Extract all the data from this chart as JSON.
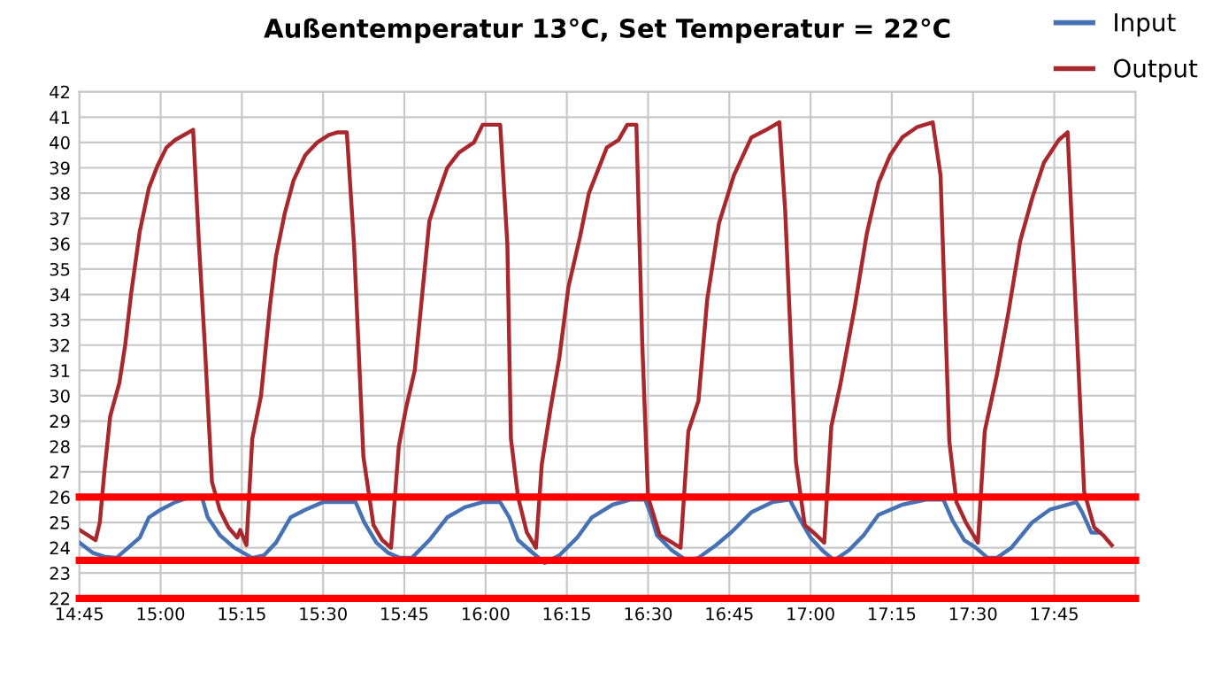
{
  "chart_data": {
    "type": "line",
    "title": "Außentemperatur 13°C, Set Temperatur = 22°C",
    "xlim": [
      14.75,
      18.0
    ],
    "xticks": [
      {
        "value": 14.75,
        "label": "14:45"
      },
      {
        "value": 15.0,
        "label": "15:00"
      },
      {
        "value": 15.25,
        "label": "15:15"
      },
      {
        "value": 15.5,
        "label": "15:30"
      },
      {
        "value": 15.75,
        "label": "15:45"
      },
      {
        "value": 16.0,
        "label": "16:00"
      },
      {
        "value": 16.25,
        "label": "16:15"
      },
      {
        "value": 16.5,
        "label": "16:30"
      },
      {
        "value": 16.75,
        "label": "16:45"
      },
      {
        "value": 17.0,
        "label": "17:00"
      },
      {
        "value": 17.25,
        "label": "17:15"
      },
      {
        "value": 17.5,
        "label": "17:30"
      },
      {
        "value": 17.75,
        "label": "17:45"
      }
    ],
    "ylim": [
      22,
      42
    ],
    "yticks": [
      22,
      23,
      24,
      25,
      26,
      27,
      28,
      29,
      30,
      31,
      32,
      33,
      34,
      35,
      36,
      37,
      38,
      39,
      40,
      41,
      42
    ],
    "grid": true,
    "legend": "top right",
    "line_style": "solid",
    "marker": "none",
    "series": [
      {
        "name": "Input",
        "color": "#4672b4",
        "x": [
          14.751,
          14.791,
          14.827,
          14.864,
          14.9,
          14.936,
          14.964,
          15.0,
          15.045,
          15.091,
          15.127,
          15.145,
          15.182,
          15.227,
          15.282,
          15.318,
          15.355,
          15.4,
          15.445,
          15.5,
          15.555,
          15.6,
          15.627,
          15.664,
          15.7,
          15.736,
          15.773,
          15.827,
          15.882,
          15.936,
          15.991,
          16.045,
          16.073,
          16.1,
          16.136,
          16.182,
          16.227,
          16.282,
          16.327,
          16.391,
          16.445,
          16.491,
          16.509,
          16.527,
          16.573,
          16.618,
          16.655,
          16.709,
          16.755,
          16.818,
          16.882,
          16.936,
          16.964,
          17.0,
          17.036,
          17.073,
          17.118,
          17.164,
          17.209,
          17.282,
          17.355,
          17.409,
          17.436,
          17.473,
          17.509,
          17.545,
          17.573,
          17.618,
          17.682,
          17.736,
          17.818,
          17.836,
          17.864,
          17.891
        ],
        "values": [
          24.2,
          23.8,
          23.65,
          23.6,
          24.0,
          24.4,
          25.2,
          25.5,
          25.8,
          26.0,
          26.0,
          25.2,
          24.5,
          24.0,
          23.6,
          23.7,
          24.2,
          25.2,
          25.5,
          25.8,
          25.8,
          25.8,
          25.0,
          24.2,
          23.8,
          23.6,
          23.6,
          24.3,
          25.2,
          25.6,
          25.8,
          25.8,
          25.2,
          24.3,
          23.9,
          23.4,
          23.7,
          24.4,
          25.2,
          25.7,
          25.9,
          25.9,
          25.3,
          24.5,
          23.9,
          23.5,
          23.6,
          24.1,
          24.6,
          25.4,
          25.8,
          25.9,
          25.2,
          24.4,
          23.9,
          23.5,
          23.9,
          24.5,
          25.3,
          25.7,
          25.9,
          25.9,
          25.1,
          24.3,
          24.0,
          23.6,
          23.6,
          24.0,
          25.0,
          25.5,
          25.8,
          25.4,
          24.6,
          24.6
        ]
      },
      {
        "name": "Output",
        "color": "#a8282e",
        "x": [
          14.751,
          14.8,
          14.813,
          14.827,
          14.845,
          14.873,
          14.891,
          14.909,
          14.936,
          14.964,
          14.991,
          15.018,
          15.045,
          15.073,
          15.1,
          15.118,
          15.136,
          15.158,
          15.182,
          15.209,
          15.236,
          15.245,
          15.264,
          15.282,
          15.309,
          15.336,
          15.355,
          15.382,
          15.409,
          15.445,
          15.482,
          15.518,
          15.545,
          15.573,
          15.595,
          15.624,
          15.655,
          15.682,
          15.709,
          15.733,
          15.755,
          15.782,
          15.805,
          15.827,
          15.855,
          15.882,
          15.918,
          15.964,
          15.991,
          16.045,
          16.067,
          16.078,
          16.1,
          16.127,
          16.155,
          16.173,
          16.2,
          16.227,
          16.255,
          16.291,
          16.318,
          16.373,
          16.409,
          16.436,
          16.464,
          16.482,
          16.5,
          16.536,
          16.6,
          16.624,
          16.655,
          16.682,
          16.718,
          16.764,
          16.818,
          16.864,
          16.904,
          16.922,
          16.955,
          16.982,
          17.009,
          17.042,
          17.064,
          17.091,
          17.136,
          17.173,
          17.209,
          17.245,
          17.282,
          17.327,
          17.376,
          17.4,
          17.427,
          17.449,
          17.478,
          17.515,
          17.536,
          17.573,
          17.609,
          17.645,
          17.682,
          17.718,
          17.764,
          17.791,
          17.809,
          17.842,
          17.873,
          17.9,
          17.927
        ],
        "values": [
          24.7,
          24.3,
          25.0,
          27.0,
          29.2,
          30.5,
          32.0,
          34.0,
          36.5,
          38.2,
          39.1,
          39.8,
          40.1,
          40.3,
          40.5,
          36.0,
          32.0,
          26.6,
          25.5,
          24.8,
          24.4,
          24.7,
          24.1,
          28.3,
          30.0,
          33.5,
          35.5,
          37.2,
          38.5,
          39.5,
          40.0,
          40.3,
          40.4,
          40.4,
          36.0,
          27.6,
          24.9,
          24.3,
          24.0,
          28.0,
          29.5,
          31.0,
          34.0,
          36.9,
          38.0,
          39.0,
          39.6,
          40.0,
          40.7,
          40.7,
          36.0,
          28.3,
          26.0,
          24.6,
          24.0,
          27.3,
          29.5,
          31.5,
          34.3,
          36.3,
          38.0,
          39.8,
          40.1,
          40.7,
          40.7,
          32.1,
          26.0,
          24.5,
          24.0,
          28.6,
          29.8,
          33.8,
          36.8,
          38.7,
          40.2,
          40.5,
          40.8,
          37.3,
          27.4,
          24.9,
          24.6,
          24.2,
          28.8,
          30.4,
          33.5,
          36.4,
          38.4,
          39.5,
          40.2,
          40.6,
          40.8,
          38.7,
          28.2,
          25.8,
          25.0,
          24.2,
          28.6,
          30.8,
          33.3,
          36.1,
          37.8,
          39.2,
          40.1,
          40.4,
          35.4,
          26.2,
          24.8,
          24.5,
          24.1
        ]
      }
    ],
    "ref_lines": [
      {
        "axis": "y",
        "value": 26,
        "color": "#ff0000",
        "line_style": "solid"
      },
      {
        "axis": "y",
        "value": 23.5,
        "color": "#ff0000",
        "line_style": "solid"
      },
      {
        "axis": "y",
        "value": 22,
        "color": "#ff0000",
        "line_style": "solid"
      }
    ]
  }
}
